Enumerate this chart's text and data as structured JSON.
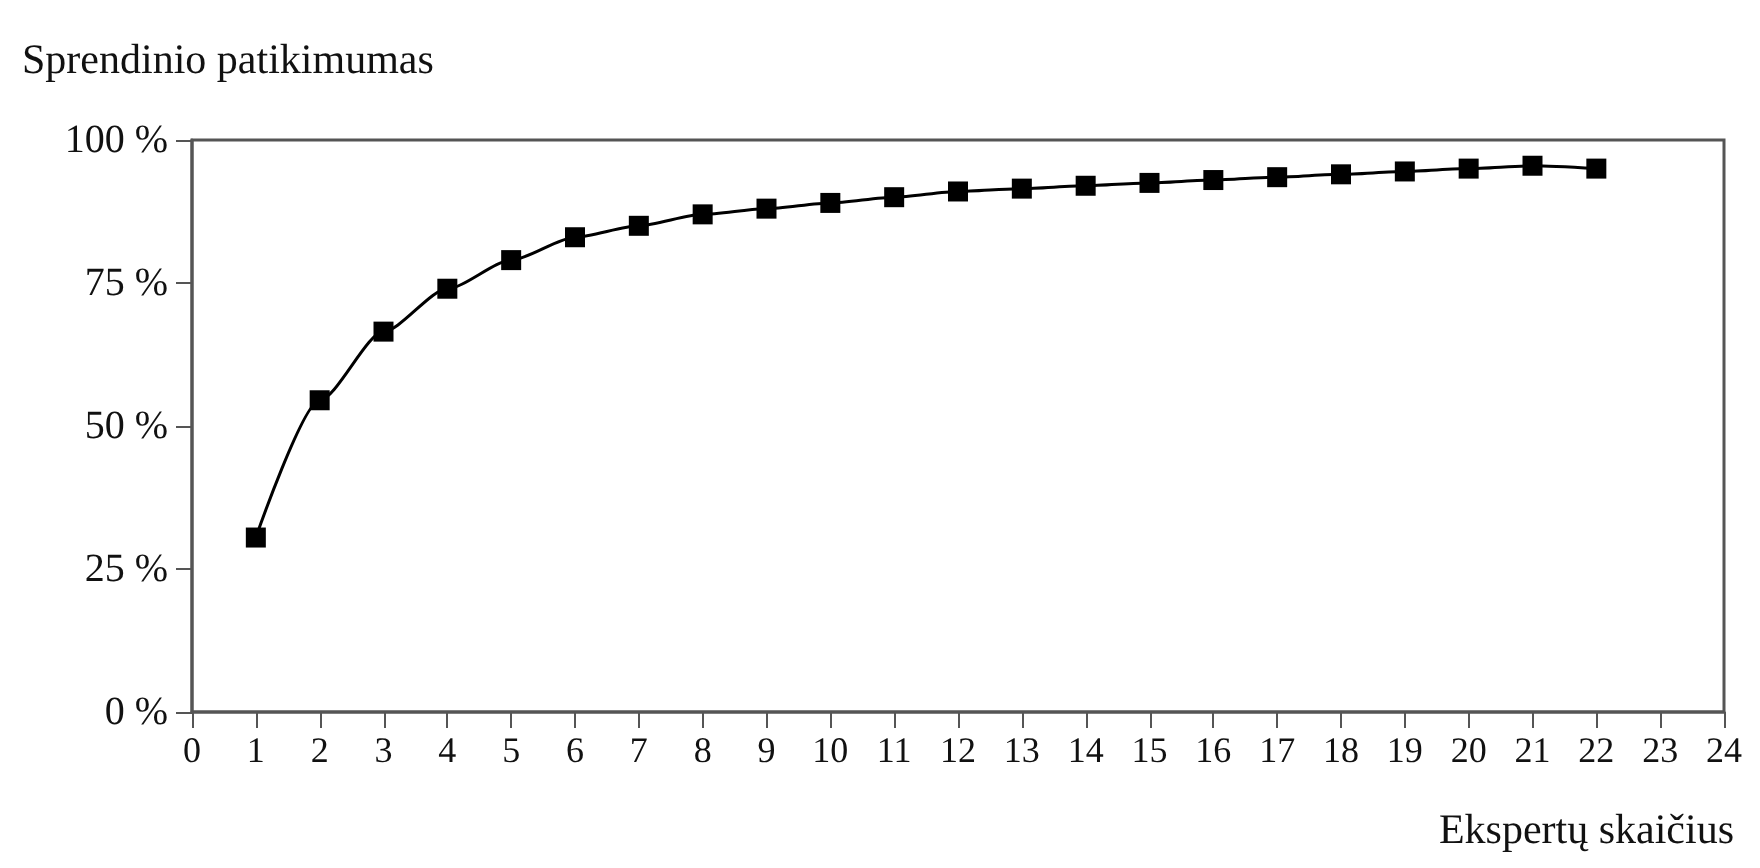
{
  "chart_data": {
    "type": "line",
    "ylabel": "Sprendinio patikimumas",
    "xlabel": "Ekspertų skaičius",
    "x": [
      1,
      2,
      3,
      4,
      5,
      6,
      7,
      8,
      9,
      10,
      11,
      12,
      13,
      14,
      15,
      16,
      17,
      18,
      19,
      20,
      21,
      22
    ],
    "series": [
      {
        "color": "#000000",
        "values": [
          30.5,
          54.5,
          66.5,
          74,
          79,
          83,
          85,
          87,
          88,
          89,
          90,
          91,
          91.5,
          92,
          92.5,
          93,
          93.5,
          94,
          94.5,
          95,
          95.5,
          95
        ]
      }
    ],
    "xlim": [
      0,
      24
    ],
    "xticks": [
      0,
      1,
      2,
      3,
      4,
      5,
      6,
      7,
      8,
      9,
      10,
      11,
      12,
      13,
      14,
      15,
      16,
      17,
      18,
      19,
      20,
      21,
      22,
      23,
      24
    ],
    "ylim": [
      0,
      100
    ],
    "yticks": [
      {
        "value": 0,
        "label": "0 %"
      },
      {
        "value": 25,
        "label": "25 %"
      },
      {
        "value": 50,
        "label": "50 %"
      },
      {
        "value": 75,
        "label": "75 %"
      },
      {
        "value": 100,
        "label": "100 %"
      }
    ],
    "marker": "square",
    "line_style": "solid"
  }
}
